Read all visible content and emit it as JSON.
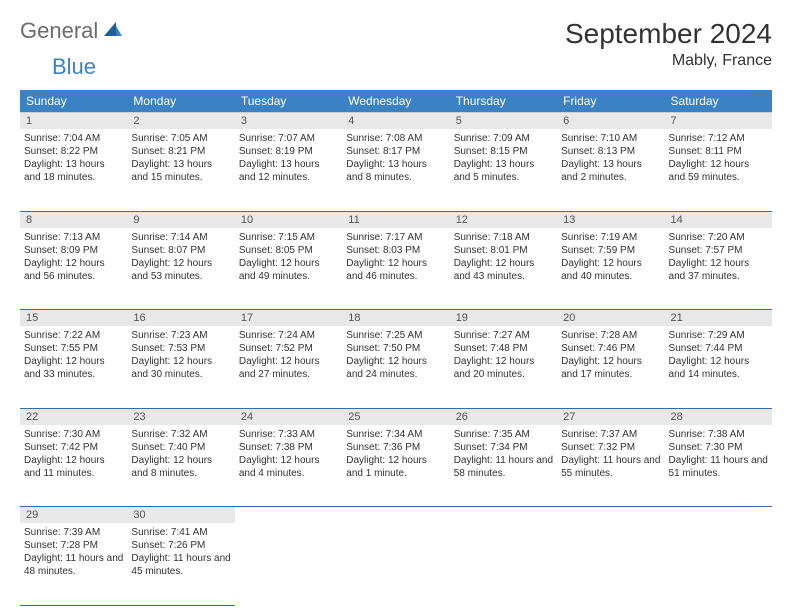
{
  "logo": {
    "part1": "General",
    "part2": "Blue"
  },
  "title": "September 2024",
  "location": "Mably, France",
  "colors": {
    "header_bg": "#3b82c4",
    "header_text": "#ffffff",
    "daynum_bg": "#e8e8e8",
    "cell_border": "#3b6b9e",
    "logo_gray": "#6b6b6b",
    "logo_blue": "#3b82c4"
  },
  "dayHeaders": [
    "Sunday",
    "Monday",
    "Tuesday",
    "Wednesday",
    "Thursday",
    "Friday",
    "Saturday"
  ],
  "weeks": [
    [
      {
        "num": "1",
        "sunrise": "7:04 AM",
        "sunset": "8:22 PM",
        "daylight": "13 hours and 18 minutes."
      },
      {
        "num": "2",
        "sunrise": "7:05 AM",
        "sunset": "8:21 PM",
        "daylight": "13 hours and 15 minutes."
      },
      {
        "num": "3",
        "sunrise": "7:07 AM",
        "sunset": "8:19 PM",
        "daylight": "13 hours and 12 minutes."
      },
      {
        "num": "4",
        "sunrise": "7:08 AM",
        "sunset": "8:17 PM",
        "daylight": "13 hours and 8 minutes."
      },
      {
        "num": "5",
        "sunrise": "7:09 AM",
        "sunset": "8:15 PM",
        "daylight": "13 hours and 5 minutes."
      },
      {
        "num": "6",
        "sunrise": "7:10 AM",
        "sunset": "8:13 PM",
        "daylight": "13 hours and 2 minutes."
      },
      {
        "num": "7",
        "sunrise": "7:12 AM",
        "sunset": "8:11 PM",
        "daylight": "12 hours and 59 minutes."
      }
    ],
    [
      {
        "num": "8",
        "sunrise": "7:13 AM",
        "sunset": "8:09 PM",
        "daylight": "12 hours and 56 minutes."
      },
      {
        "num": "9",
        "sunrise": "7:14 AM",
        "sunset": "8:07 PM",
        "daylight": "12 hours and 53 minutes."
      },
      {
        "num": "10",
        "sunrise": "7:15 AM",
        "sunset": "8:05 PM",
        "daylight": "12 hours and 49 minutes."
      },
      {
        "num": "11",
        "sunrise": "7:17 AM",
        "sunset": "8:03 PM",
        "daylight": "12 hours and 46 minutes."
      },
      {
        "num": "12",
        "sunrise": "7:18 AM",
        "sunset": "8:01 PM",
        "daylight": "12 hours and 43 minutes."
      },
      {
        "num": "13",
        "sunrise": "7:19 AM",
        "sunset": "7:59 PM",
        "daylight": "12 hours and 40 minutes."
      },
      {
        "num": "14",
        "sunrise": "7:20 AM",
        "sunset": "7:57 PM",
        "daylight": "12 hours and 37 minutes."
      }
    ],
    [
      {
        "num": "15",
        "sunrise": "7:22 AM",
        "sunset": "7:55 PM",
        "daylight": "12 hours and 33 minutes."
      },
      {
        "num": "16",
        "sunrise": "7:23 AM",
        "sunset": "7:53 PM",
        "daylight": "12 hours and 30 minutes."
      },
      {
        "num": "17",
        "sunrise": "7:24 AM",
        "sunset": "7:52 PM",
        "daylight": "12 hours and 27 minutes."
      },
      {
        "num": "18",
        "sunrise": "7:25 AM",
        "sunset": "7:50 PM",
        "daylight": "12 hours and 24 minutes."
      },
      {
        "num": "19",
        "sunrise": "7:27 AM",
        "sunset": "7:48 PM",
        "daylight": "12 hours and 20 minutes."
      },
      {
        "num": "20",
        "sunrise": "7:28 AM",
        "sunset": "7:46 PM",
        "daylight": "12 hours and 17 minutes."
      },
      {
        "num": "21",
        "sunrise": "7:29 AM",
        "sunset": "7:44 PM",
        "daylight": "12 hours and 14 minutes."
      }
    ],
    [
      {
        "num": "22",
        "sunrise": "7:30 AM",
        "sunset": "7:42 PM",
        "daylight": "12 hours and 11 minutes."
      },
      {
        "num": "23",
        "sunrise": "7:32 AM",
        "sunset": "7:40 PM",
        "daylight": "12 hours and 8 minutes."
      },
      {
        "num": "24",
        "sunrise": "7:33 AM",
        "sunset": "7:38 PM",
        "daylight": "12 hours and 4 minutes."
      },
      {
        "num": "25",
        "sunrise": "7:34 AM",
        "sunset": "7:36 PM",
        "daylight": "12 hours and 1 minute."
      },
      {
        "num": "26",
        "sunrise": "7:35 AM",
        "sunset": "7:34 PM",
        "daylight": "11 hours and 58 minutes."
      },
      {
        "num": "27",
        "sunrise": "7:37 AM",
        "sunset": "7:32 PM",
        "daylight": "11 hours and 55 minutes."
      },
      {
        "num": "28",
        "sunrise": "7:38 AM",
        "sunset": "7:30 PM",
        "daylight": "11 hours and 51 minutes."
      }
    ],
    [
      {
        "num": "29",
        "sunrise": "7:39 AM",
        "sunset": "7:28 PM",
        "daylight": "11 hours and 48 minutes."
      },
      {
        "num": "30",
        "sunrise": "7:41 AM",
        "sunset": "7:26 PM",
        "daylight": "11 hours and 45 minutes."
      },
      null,
      null,
      null,
      null,
      null
    ]
  ]
}
